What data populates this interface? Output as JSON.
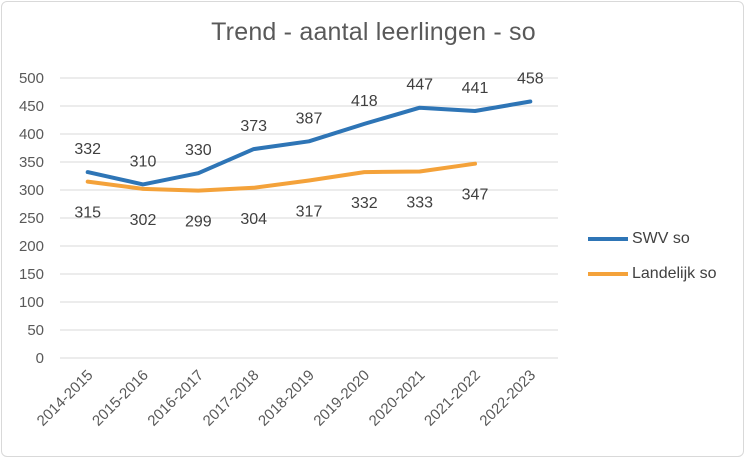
{
  "chart_data": {
    "type": "line",
    "title": "Trend - aantal leerlingen - so",
    "categories": [
      "2014-2015",
      "2015-2016",
      "2016-2017",
      "2017-2018",
      "2018-2019",
      "2019-2020",
      "2020-2021",
      "2021-2022",
      "2022-2023"
    ],
    "series": [
      {
        "name": "SWV so",
        "color": "#2e75b6",
        "values": [
          332,
          310,
          330,
          373,
          387,
          418,
          447,
          441,
          458
        ]
      },
      {
        "name": "Landelijk so",
        "color": "#f4a23a",
        "values": [
          315,
          302,
          299,
          304,
          317,
          332,
          333,
          347,
          null
        ]
      }
    ],
    "ylim": [
      0,
      500
    ],
    "yticks": [
      0,
      50,
      100,
      150,
      200,
      250,
      300,
      350,
      400,
      450,
      500
    ],
    "grid": true,
    "legend_position": "right",
    "gridline_color": "#d9d9d9",
    "axis_text_color": "#595959"
  }
}
